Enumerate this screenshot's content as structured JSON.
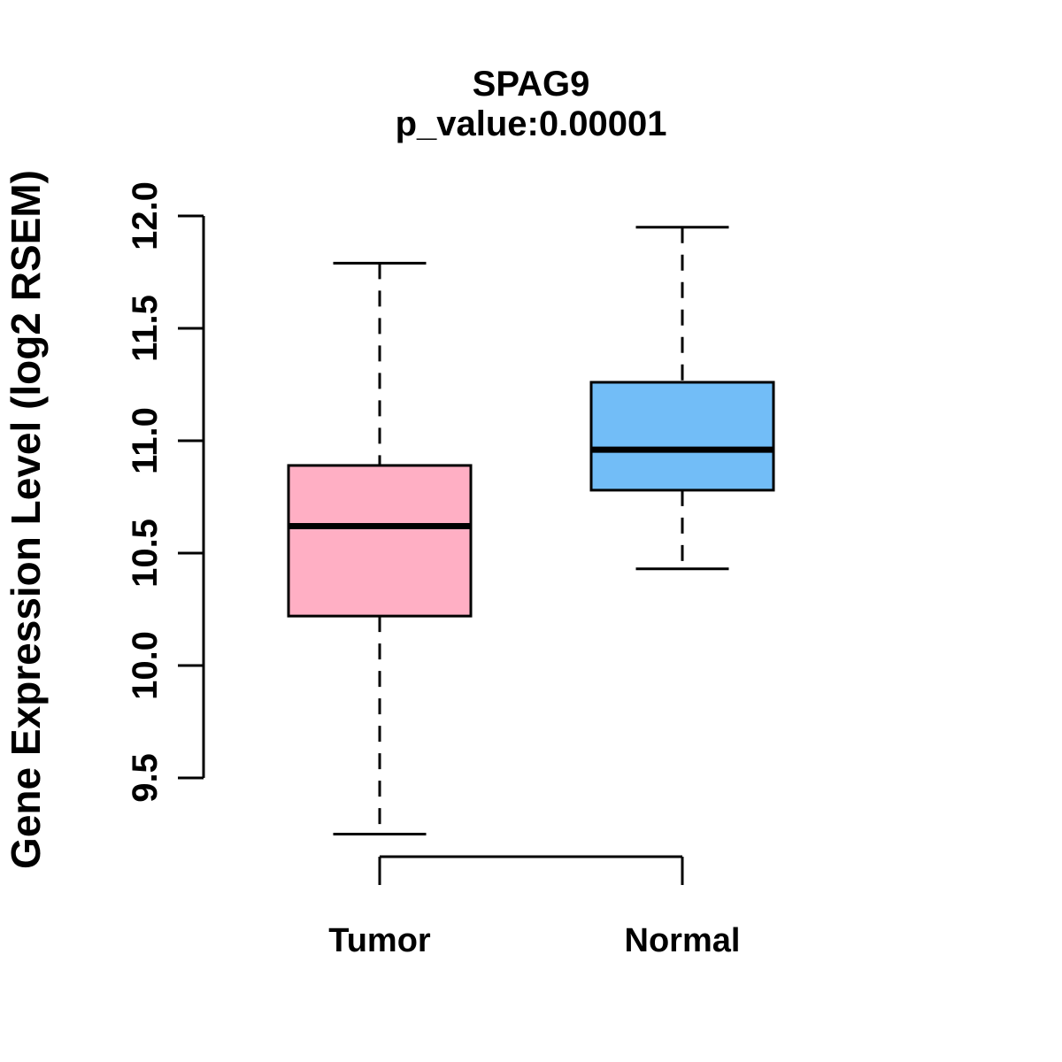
{
  "chart_data": {
    "type": "boxplot",
    "title": "SPAG9",
    "subtitle": "p_value:0.00001",
    "ylabel": "Gene Expression Level (log2 RSEM)",
    "xlabel": "",
    "ylim": [
      9.5,
      12.0
    ],
    "yticks": [
      9.5,
      10.0,
      10.5,
      11.0,
      11.5,
      12.0
    ],
    "ytick_labels": [
      "9.5",
      "10.0",
      "10.5",
      "11.0",
      "11.5",
      "12.0"
    ],
    "categories": [
      "Tumor",
      "Normal"
    ],
    "series": [
      {
        "name": "Tumor",
        "fill_color": "#FFAFC4",
        "whisker_low": 9.25,
        "q1": 10.22,
        "median": 10.62,
        "q3": 10.89,
        "whisker_high": 11.79
      },
      {
        "name": "Normal",
        "fill_color": "#72BDF7",
        "whisker_low": 10.43,
        "q1": 10.78,
        "median": 10.96,
        "q3": 11.26,
        "whisker_high": 11.95
      }
    ],
    "stroke_color": "#000000",
    "background_color": "#FFFFFF",
    "grid": false,
    "legend": "none",
    "orientation": "vertical",
    "whisker_style": "dashed"
  }
}
